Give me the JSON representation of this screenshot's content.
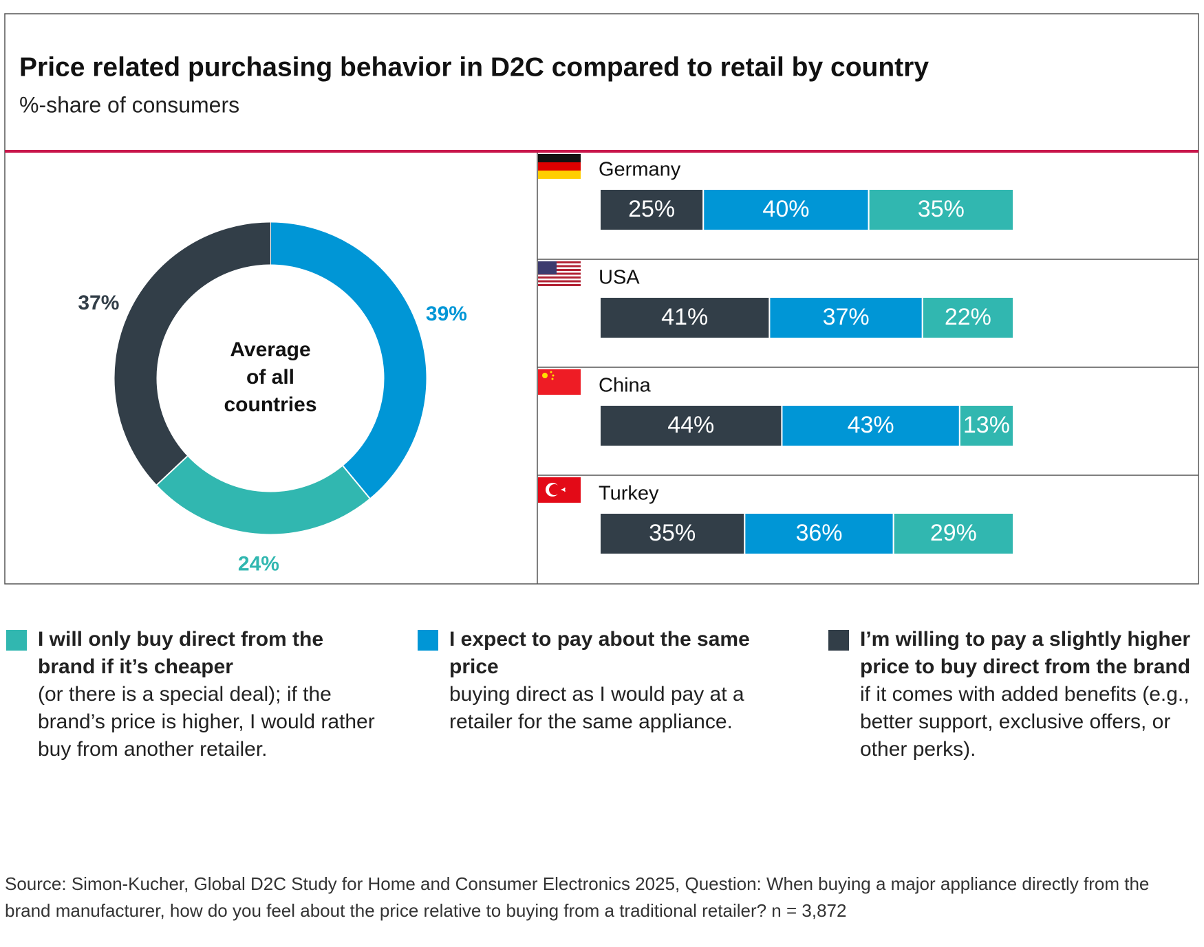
{
  "header": {
    "title": "Price related purchasing behavior in D2C compared to retail by country",
    "subtitle": "%-share of consumers"
  },
  "chart_data": [
    {
      "type": "pie",
      "center_label": [
        "Average",
        "of all",
        "countries"
      ],
      "values": [
        39,
        24,
        37
      ],
      "value_labels": [
        "39%",
        "24%",
        "37%"
      ],
      "colors": [
        "#0096d6",
        "#31b7b0",
        "#323e48"
      ]
    },
    {
      "type": "bar",
      "orientation": "horizontal",
      "stacked": true,
      "categories": [
        "Germany",
        "USA",
        "China",
        "Turkey"
      ],
      "series": [
        {
          "name": "I’m willing to pay a slightly higher price to buy direct from the brand",
          "description": "if it comes with added benefits (e.g., better support, exclusive offers, or other perks).",
          "color": "#323e48",
          "values": [
            25,
            41,
            44,
            35
          ],
          "value_labels": [
            "25%",
            "41%",
            "44%",
            "35%"
          ]
        },
        {
          "name": "I expect to pay about the same price",
          "description": "buying direct as I would pay at a retailer for the same appliance.",
          "color": "#0096d6",
          "values": [
            40,
            37,
            43,
            36
          ],
          "value_labels": [
            "40%",
            "37%",
            "43%",
            "36%"
          ]
        },
        {
          "name": "I will only buy direct from the brand if it’s cheaper",
          "description": "(or there is a special deal); if the brand’s price is higher, I would rather buy from another retailer.",
          "color": "#31b7b0",
          "values": [
            35,
            22,
            13,
            29
          ],
          "value_labels": [
            "35%",
            "22%",
            "13%",
            "29%"
          ]
        }
      ]
    }
  ],
  "footer": {
    "source": "Source: Simon-Kucher, Global D2C Study for Home and Consumer Electronics 2025, Question: When buying a major appliance directly from the brand manufacturer, how do you feel about the price relative to buying from a traditional retailer? n = 3,872"
  }
}
